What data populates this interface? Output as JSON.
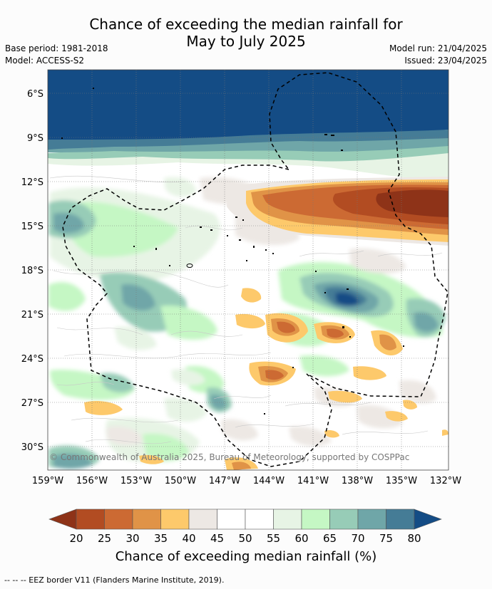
{
  "title_line1": "Chance of exceeding the median rainfall for",
  "title_line2": "May to July 2025",
  "base_period": "Base period: 1981-2018",
  "model": "Model: ACCESS-S2",
  "model_run": "Model run: 21/04/2025",
  "issued": "Issued: 23/04/2025",
  "copyright": "© Commonwealth of Australia 2025, Bureau of Meteorology, supported by COSPPac",
  "lat_ticks": [
    "6°S",
    "9°S",
    "12°S",
    "15°S",
    "18°S",
    "21°S",
    "24°S",
    "27°S",
    "30°S"
  ],
  "lon_ticks": [
    "159°W",
    "156°W",
    "153°W",
    "150°W",
    "147°W",
    "144°W",
    "141°W",
    "138°W",
    "135°W",
    "132°W"
  ],
  "colorbar": {
    "levels": [
      "20",
      "25",
      "30",
      "35",
      "40",
      "45",
      "50",
      "55",
      "60",
      "65",
      "70",
      "75",
      "80"
    ],
    "colors": [
      "#8e3318",
      "#b24c22",
      "#cc6a33",
      "#e09347",
      "#fdc96b",
      "#ede8e4",
      "#ffffff",
      "#ffffff",
      "#e7f4e5",
      "#c5f7c4",
      "#97ccb7",
      "#6fa6a8",
      "#457c96",
      "#144c85"
    ],
    "label": "Chance of exceeding median rainfall (%)"
  },
  "footer": "-- -- -- EEZ border V11 (Flanders Marine Institute, 2019)."
}
